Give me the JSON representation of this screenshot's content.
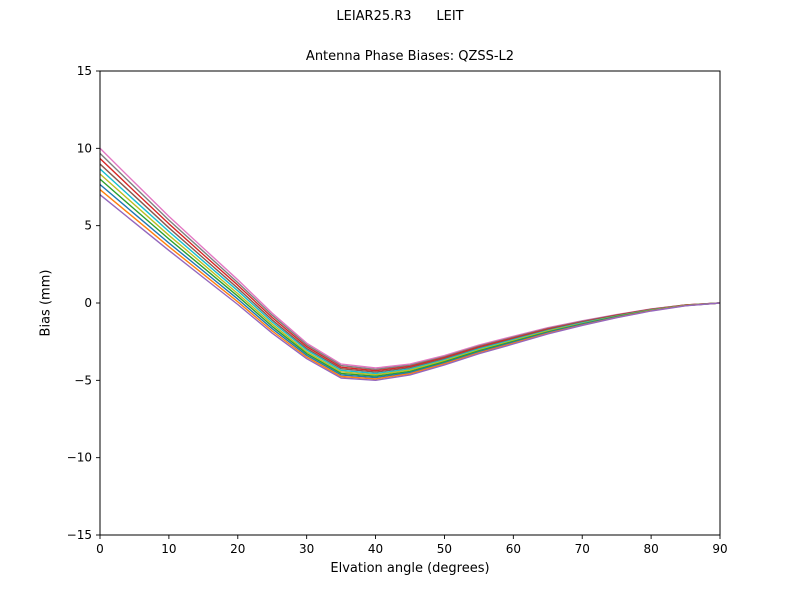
{
  "chart_data": {
    "type": "line",
    "suptitle": "LEIAR25.R3      LEIT",
    "title": "Antenna Phase Biases: QZSS-L2",
    "xlabel": "Elvation angle (degrees)",
    "ylabel": "Bias (mm)",
    "xlim": [
      0,
      90
    ],
    "ylim": [
      -15,
      15
    ],
    "x_ticks": [
      0,
      10,
      20,
      30,
      40,
      50,
      60,
      70,
      80,
      90
    ],
    "y_ticks": [
      -15,
      -10,
      -5,
      0,
      5,
      10,
      15
    ],
    "grid": false,
    "legend": "none",
    "x": [
      0,
      5,
      10,
      15,
      20,
      25,
      30,
      35,
      40,
      45,
      50,
      55,
      60,
      65,
      70,
      75,
      80,
      85,
      90
    ],
    "series": [
      {
        "name": "line-01",
        "color": "#e377c2",
        "values": [
          10.0,
          7.8,
          5.6,
          3.55,
          1.5,
          -0.65,
          -2.6,
          -3.95,
          -4.2,
          -3.95,
          -3.4,
          -2.72,
          -2.15,
          -1.6,
          -1.15,
          -0.75,
          -0.38,
          -0.12,
          0.0
        ]
      },
      {
        "name": "line-02",
        "color": "#7f7f7f",
        "values": [
          9.67,
          7.51,
          5.36,
          3.34,
          1.32,
          -0.79,
          -2.71,
          -4.05,
          -4.29,
          -4.03,
          -3.47,
          -2.78,
          -2.21,
          -1.64,
          -1.18,
          -0.77,
          -0.4,
          -0.13,
          0.0
        ]
      },
      {
        "name": "line-03",
        "color": "#d62728",
        "values": [
          9.34,
          7.23,
          5.12,
          3.13,
          1.15,
          -0.94,
          -2.82,
          -4.15,
          -4.38,
          -4.1,
          -3.53,
          -2.84,
          -2.26,
          -1.69,
          -1.22,
          -0.79,
          -0.41,
          -0.13,
          0.0
        ]
      },
      {
        "name": "line-04",
        "color": "#8c564b",
        "values": [
          8.99,
          6.93,
          4.86,
          2.91,
          0.96,
          -1.09,
          -2.94,
          -4.25,
          -4.47,
          -4.18,
          -3.6,
          -2.91,
          -2.32,
          -1.73,
          -1.25,
          -0.82,
          -0.43,
          -0.14,
          0.0
        ]
      },
      {
        "name": "line-05",
        "color": "#17becf",
        "values": [
          8.67,
          6.64,
          4.62,
          2.7,
          0.79,
          -1.23,
          -3.04,
          -4.35,
          -4.56,
          -4.26,
          -3.67,
          -2.97,
          -2.37,
          -1.78,
          -1.28,
          -0.84,
          -0.44,
          -0.15,
          0.0
        ]
      },
      {
        "name": "line-06",
        "color": "#bcbd22",
        "values": [
          8.34,
          6.36,
          4.38,
          2.5,
          0.61,
          -1.37,
          -3.16,
          -4.45,
          -4.64,
          -4.34,
          -3.73,
          -3.03,
          -2.43,
          -1.82,
          -1.32,
          -0.86,
          -0.46,
          -0.15,
          0.0
        ]
      },
      {
        "name": "line-07",
        "color": "#2ca02c",
        "values": [
          8.01,
          6.07,
          4.14,
          2.29,
          0.44,
          -1.51,
          -3.27,
          -4.55,
          -4.73,
          -4.42,
          -3.8,
          -3.09,
          -2.48,
          -1.87,
          -1.35,
          -0.88,
          -0.47,
          -0.16,
          0.0
        ]
      },
      {
        "name": "line-08",
        "color": "#1f77b4",
        "values": [
          7.66,
          5.77,
          3.88,
          2.07,
          0.25,
          -1.66,
          -3.38,
          -4.65,
          -4.82,
          -4.5,
          -3.87,
          -3.16,
          -2.54,
          -1.91,
          -1.38,
          -0.91,
          -0.49,
          -0.17,
          0.0
        ]
      },
      {
        "name": "line-09",
        "color": "#ff7f0e",
        "values": [
          7.33,
          5.49,
          3.64,
          1.86,
          0.08,
          -1.81,
          -3.49,
          -4.75,
          -4.91,
          -4.57,
          -3.93,
          -3.22,
          -2.6,
          -1.96,
          -1.42,
          -0.93,
          -0.5,
          -0.17,
          0.0
        ]
      },
      {
        "name": "line-10",
        "color": "#9467bd",
        "values": [
          7.0,
          5.2,
          3.4,
          1.65,
          -0.1,
          -1.95,
          -3.6,
          -4.85,
          -5.0,
          -4.65,
          -4.0,
          -3.28,
          -2.65,
          -2.0,
          -1.45,
          -0.95,
          -0.52,
          -0.18,
          0.0
        ]
      }
    ]
  }
}
